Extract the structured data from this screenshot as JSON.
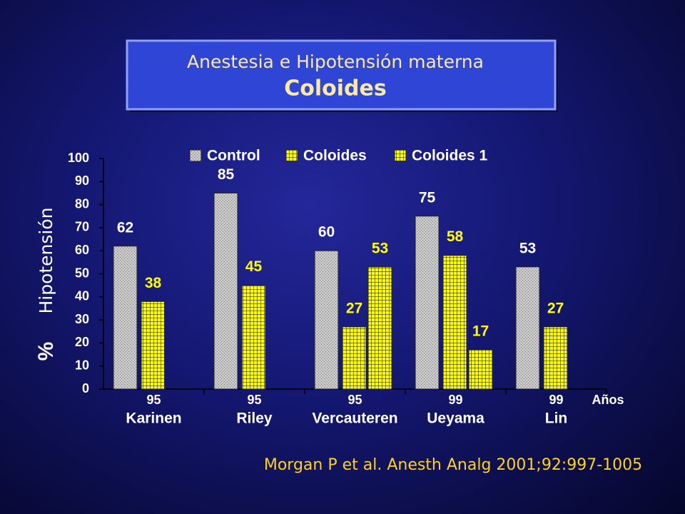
{
  "header": {
    "title": "Anestesia e Hipotensión materna",
    "subtitle": "Coloides"
  },
  "chart_data": {
    "type": "bar",
    "y_label": "Hipotensión",
    "y_unit": "%",
    "categories": [
      "Karinen",
      "Riley",
      "Vercauteren",
      "Ueyama",
      "Lin"
    ],
    "years": [
      "95",
      "95",
      "95",
      "99",
      "99"
    ],
    "x_label": "Años",
    "series": [
      {
        "name": "Control",
        "color": "#c8c8c8",
        "pattern": "dots",
        "label_color": "#ffffff",
        "values": [
          62,
          85,
          60,
          75,
          53
        ]
      },
      {
        "name": "Coloides",
        "color": "#ffff00",
        "pattern": "grid",
        "label_color": "#ffff00",
        "values": [
          38,
          45,
          27,
          58,
          27
        ]
      },
      {
        "name": "Coloides 1",
        "color": "#ffff00",
        "pattern": "grid",
        "label_color": "#ffff00",
        "values": [
          null,
          null,
          53,
          17,
          null
        ]
      }
    ],
    "ylim": [
      0,
      100
    ],
    "yticks": [
      0,
      10,
      20,
      30,
      40,
      50,
      60,
      70,
      80,
      90,
      100
    ]
  },
  "citation": "Morgan P  et  al. Anesth Analg 2001;92:997-1005"
}
